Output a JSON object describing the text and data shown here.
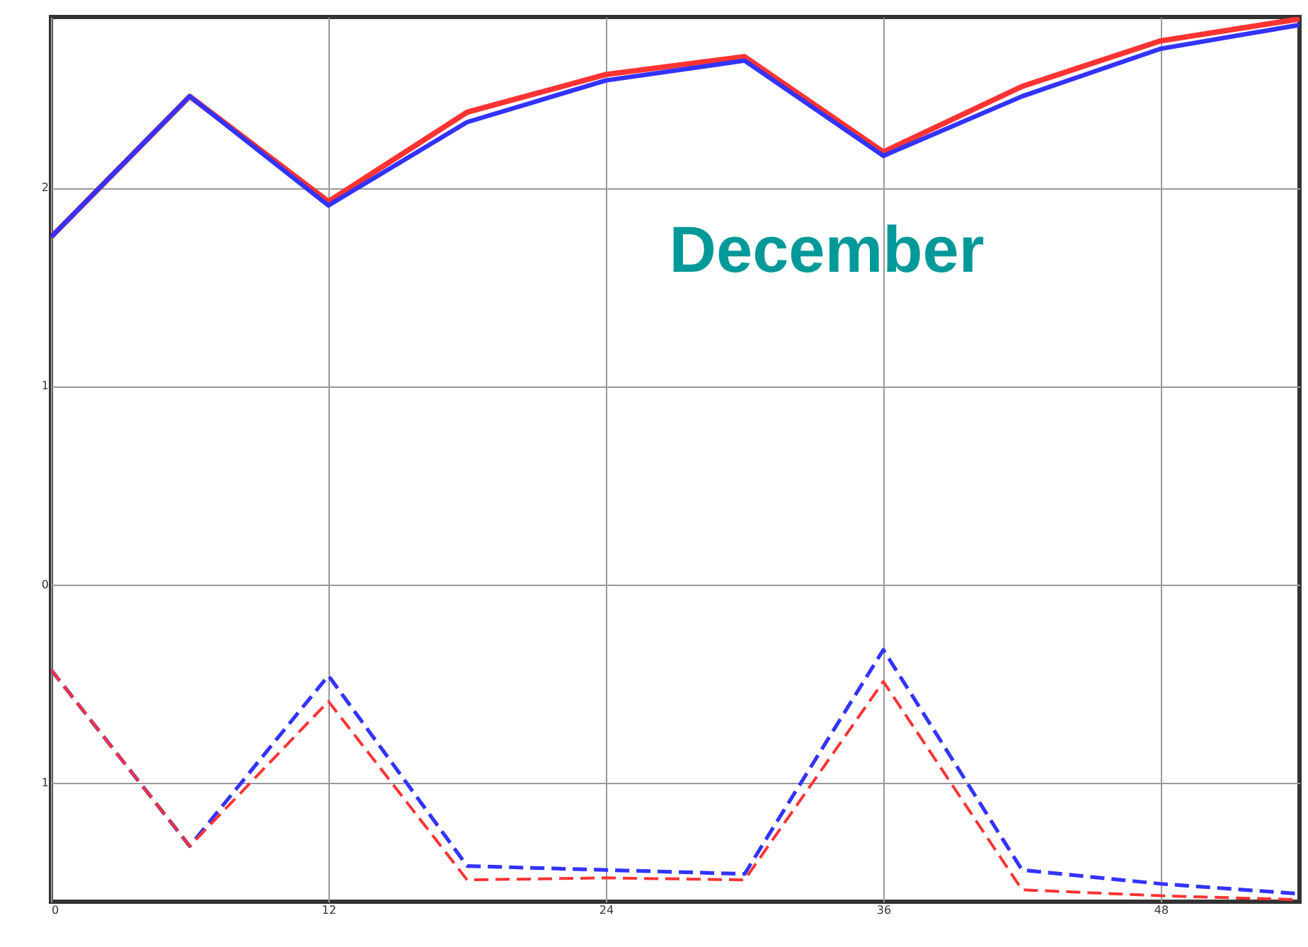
{
  "chart_data": {
    "type": "line",
    "x": [
      0,
      6,
      12,
      18,
      24,
      30,
      36,
      42,
      48,
      54
    ],
    "series": [
      {
        "color": "#ff3333",
        "line_style": "solid",
        "values": [
          1.75,
          2.46,
          1.93,
          2.38,
          2.57,
          2.66,
          2.18,
          2.51,
          2.74,
          2.85
        ]
      },
      {
        "color": "#3333ff",
        "line_style": "solid",
        "values": [
          1.75,
          2.46,
          1.91,
          2.33,
          2.54,
          2.64,
          2.16,
          2.46,
          2.7,
          2.82
        ]
      },
      {
        "color": "#3333ff",
        "line_style": "dashed",
        "values": [
          -0.43,
          -1.32,
          -0.46,
          -1.42,
          -1.44,
          -1.46,
          -0.33,
          -1.44,
          -1.51,
          -1.56
        ]
      },
      {
        "color": "#ff3333",
        "line_style": "dashed",
        "values": [
          -0.43,
          -1.32,
          -0.59,
          -1.49,
          -1.48,
          -1.49,
          -0.49,
          -1.54,
          -1.57,
          -1.59
        ]
      }
    ],
    "annotations": [
      "December"
    ],
    "xlim": [
      0,
      54
    ],
    "xticks": [
      0,
      12,
      24,
      36,
      48
    ],
    "ylim": [
      -1.6,
      2.86
    ],
    "yticks": [
      2,
      1,
      0,
      {
        "value": -1,
        "label": "1"
      }
    ],
    "grid": true
  }
}
